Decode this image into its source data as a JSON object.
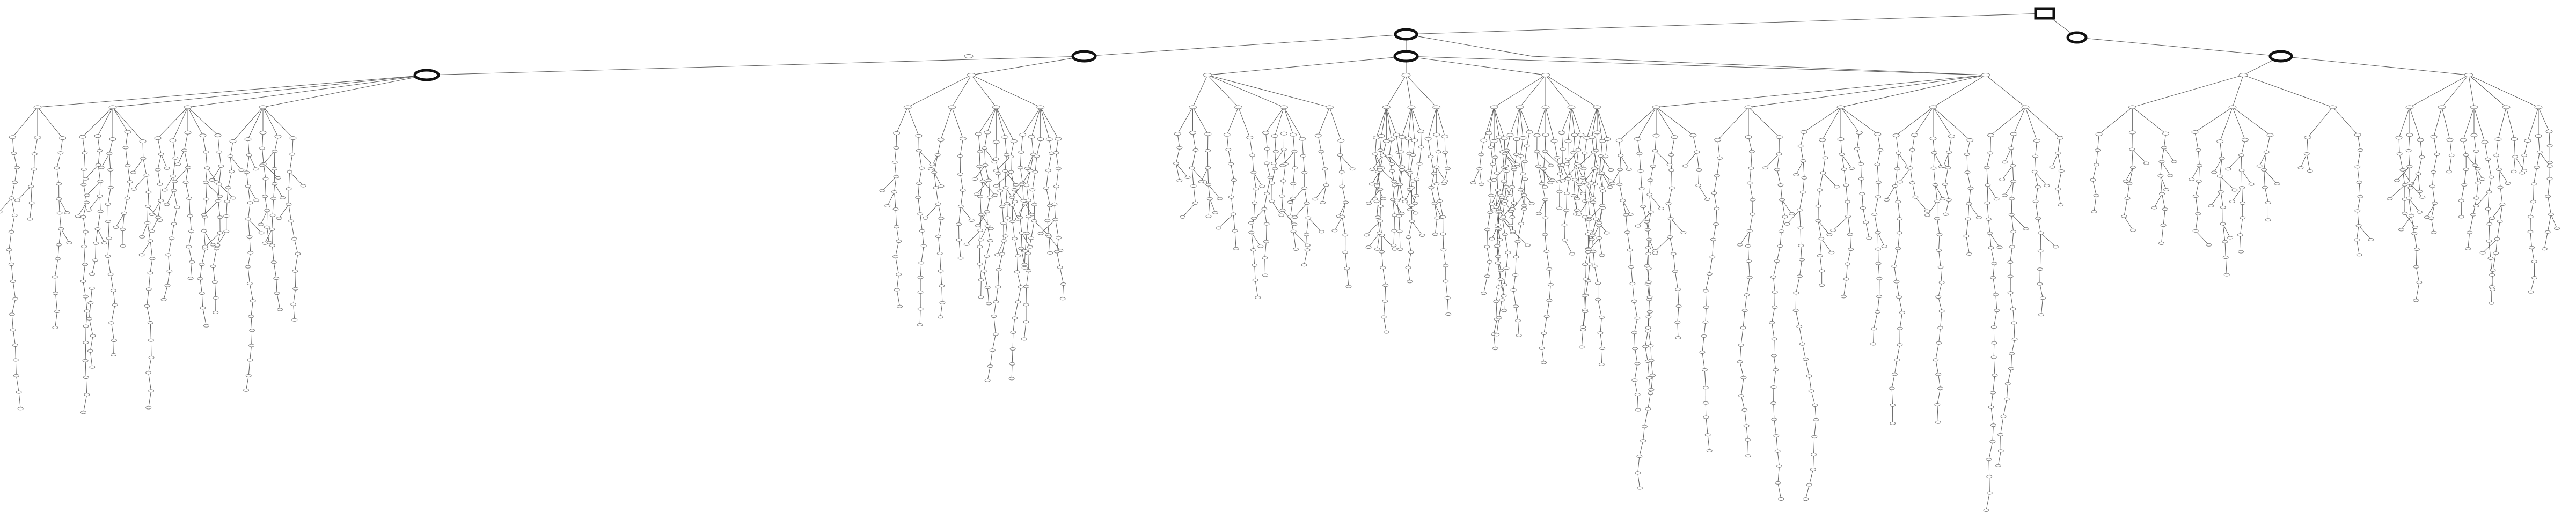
{
  "diagram": {
    "type": "tree",
    "note": "",
    "root": {
      "label": "",
      "shape": "box"
    },
    "highlighted_nodes": [
      {
        "label": "",
        "shape": "ellipse"
      },
      {
        "label": "",
        "shape": "ellipse"
      },
      {
        "label": "",
        "shape": "ellipse"
      },
      {
        "label": "",
        "shape": "ellipse"
      },
      {
        "label": "",
        "shape": "ellipse"
      },
      {
        "label": "",
        "shape": "ellipse"
      }
    ],
    "colors": {
      "edge": "#555555",
      "node_outline": "#777777",
      "highlight_outline": "#111111",
      "background": "#ffffff"
    }
  }
}
